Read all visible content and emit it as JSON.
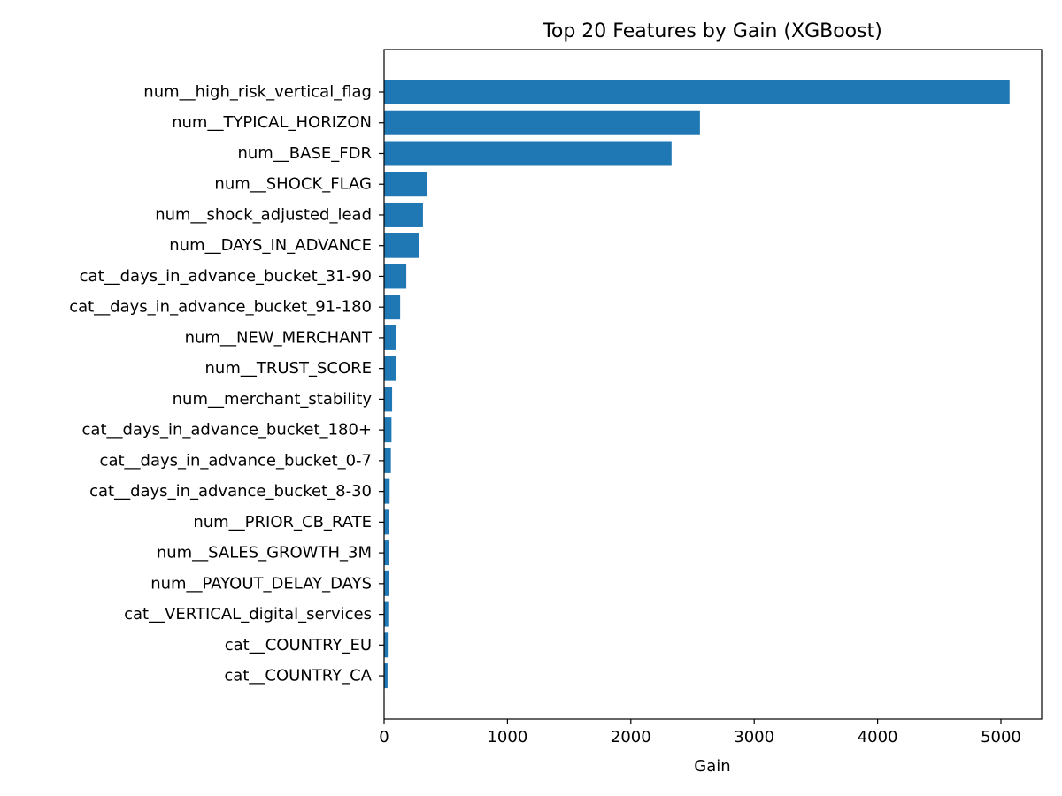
{
  "chart_data": {
    "type": "bar",
    "orientation": "horizontal",
    "title": "Top 20 Features by Gain (XGBoost)",
    "xlabel": "Gain",
    "ylabel": "",
    "xlim": [
      0,
      5330
    ],
    "xticks": [
      0,
      1000,
      2000,
      3000,
      4000,
      5000
    ],
    "grid": false,
    "bar_color": "#1f77b4",
    "categories": [
      "num__high_risk_vertical_flag",
      "num__TYPICAL_HORIZON",
      "num__BASE_FDR",
      "num__SHOCK_FLAG",
      "num__shock_adjusted_lead",
      "num__DAYS_IN_ADVANCE",
      "cat__days_in_advance_bucket_31-90",
      "cat__days_in_advance_bucket_91-180",
      "num__NEW_MERCHANT",
      "num__TRUST_SCORE",
      "num__merchant_stability",
      "cat__days_in_advance_bucket_180+",
      "cat__days_in_advance_bucket_0-7",
      "cat__days_in_advance_bucket_8-30",
      "num__PRIOR_CB_RATE",
      "num__SALES_GROWTH_3M",
      "num__PAYOUT_DELAY_DAYS",
      "cat__VERTICAL_digital_services",
      "cat__COUNTRY_EU",
      "cat__COUNTRY_CA"
    ],
    "values": [
      5070,
      2560,
      2330,
      345,
      315,
      280,
      180,
      130,
      100,
      95,
      65,
      60,
      55,
      45,
      40,
      38,
      36,
      34,
      30,
      28
    ]
  }
}
